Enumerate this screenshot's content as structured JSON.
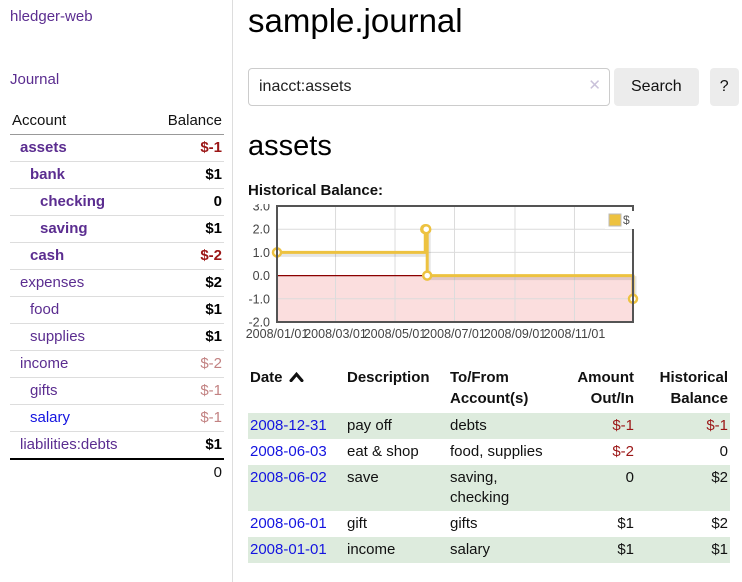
{
  "app": {
    "title": "hledger-web"
  },
  "sidebar": {
    "journal_label": "Journal",
    "accounts": {
      "header_account": "Account",
      "header_balance": "Balance",
      "rows": [
        {
          "name": "assets",
          "balance": "$-1",
          "depth": 1,
          "bold": true,
          "link": "purple",
          "balance_style": "neg-strong"
        },
        {
          "name": "bank",
          "balance": "$1",
          "depth": 2,
          "bold": true,
          "link": "purple",
          "balance_style": "pos"
        },
        {
          "name": "checking",
          "balance": "0",
          "depth": 3,
          "bold": true,
          "link": "purple",
          "balance_style": "pos"
        },
        {
          "name": "saving",
          "balance": "$1",
          "depth": 3,
          "bold": true,
          "link": "purple",
          "balance_style": "pos"
        },
        {
          "name": "cash",
          "balance": "$-2",
          "depth": 2,
          "bold": true,
          "link": "purple",
          "balance_style": "neg-strong"
        },
        {
          "name": "expenses",
          "balance": "$2",
          "depth": 1,
          "bold": false,
          "link": "purple",
          "balance_style": "pos"
        },
        {
          "name": "food",
          "balance": "$1",
          "depth": 2,
          "bold": false,
          "link": "purple",
          "balance_style": "pos"
        },
        {
          "name": "supplies",
          "balance": "$1",
          "depth": 2,
          "bold": false,
          "link": "purple",
          "balance_style": "pos"
        },
        {
          "name": "income",
          "balance": "$-2",
          "depth": 1,
          "bold": false,
          "link": "purple",
          "balance_style": "neg-soft"
        },
        {
          "name": "gifts",
          "balance": "$-1",
          "depth": 2,
          "bold": false,
          "link": "purple",
          "balance_style": "neg-soft"
        },
        {
          "name": "salary",
          "balance": "$-1",
          "depth": 2,
          "bold": false,
          "link": "blue",
          "balance_style": "neg-soft"
        },
        {
          "name": "liabilities:debts",
          "balance": "$1",
          "depth": 1,
          "bold": false,
          "link": "purple",
          "balance_style": "pos"
        }
      ],
      "total": "0"
    }
  },
  "main": {
    "title": "sample.journal",
    "search": {
      "value": "inacct:assets",
      "clear_icon": "✕",
      "button_label": "Search",
      "help_label": "?"
    },
    "account_heading": "assets",
    "chart_label": "Historical Balance:"
  },
  "chart_data": {
    "type": "line",
    "step": true,
    "title": "Historical Balance:",
    "series": [
      {
        "name": "$",
        "color": "#edc240",
        "points": [
          [
            "2008-01-01",
            1
          ],
          [
            "2008-06-01",
            2
          ],
          [
            "2008-06-02",
            2
          ],
          [
            "2008-06-03",
            0
          ],
          [
            "2008-12-31",
            -1
          ]
        ]
      }
    ],
    "xlim": [
      "2008-01-01",
      "2008-12-31"
    ],
    "ylim": [
      -2,
      3
    ],
    "x_ticks": [
      "2008/01/01",
      "2008/03/01",
      "2008/05/01",
      "2008/07/01",
      "2008/09/01",
      "2008/11/01"
    ],
    "y_ticks": [
      "3.0",
      "2.0",
      "1.0",
      "0.0",
      "-1.0",
      "-2.0"
    ],
    "legend": {
      "label": "$",
      "position": "top-right"
    },
    "grid": true,
    "colors": {
      "gridline": "#dcdcdc",
      "zero_line": "#8b0000",
      "negative_region_fill": "#fbdede",
      "border": "#545454",
      "tick_text": "#444444",
      "marker_fill": "#ffffff"
    }
  },
  "register": {
    "headers": {
      "date": "Date",
      "description": "Description",
      "accounts": "To/From Account(s)",
      "amount": "Amount Out/In",
      "balance": "Historical Balance"
    },
    "sort_icon": "caret-up",
    "rows": [
      {
        "date": "2008-12-31",
        "description": "pay off",
        "accounts": "debts",
        "amount": "$-1",
        "amount_neg": true,
        "balance": "$-1",
        "balance_neg": true
      },
      {
        "date": "2008-06-03",
        "description": "eat & shop",
        "accounts": "food, supplies",
        "amount": "$-2",
        "amount_neg": true,
        "balance": "0",
        "balance_neg": false
      },
      {
        "date": "2008-06-02",
        "description": "save",
        "accounts": "saving, checking",
        "amount": "0",
        "amount_neg": false,
        "balance": "$2",
        "balance_neg": false
      },
      {
        "date": "2008-06-01",
        "description": "gift",
        "accounts": "gifts",
        "amount": "$1",
        "amount_neg": false,
        "balance": "$2",
        "balance_neg": false
      },
      {
        "date": "2008-01-01",
        "description": "income",
        "accounts": "salary",
        "amount": "$1",
        "amount_neg": false,
        "balance": "$1",
        "balance_neg": false
      }
    ]
  }
}
